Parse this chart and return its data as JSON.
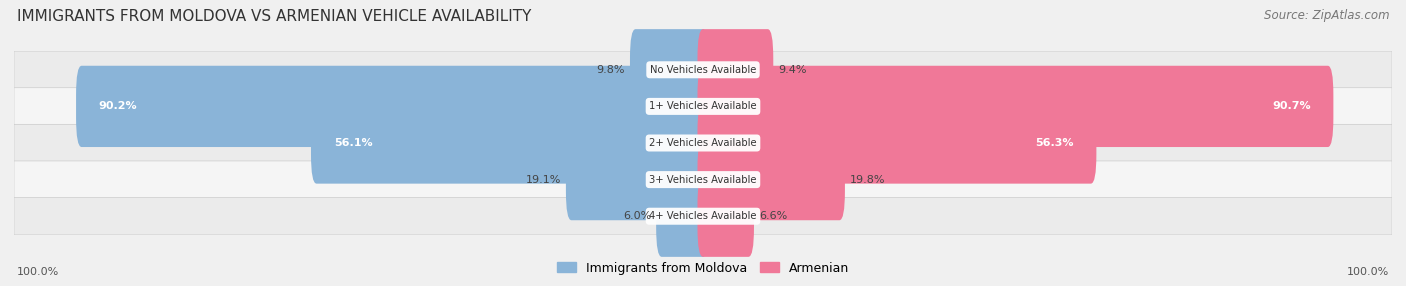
{
  "title": "IMMIGRANTS FROM MOLDOVA VS ARMENIAN VEHICLE AVAILABILITY",
  "source": "Source: ZipAtlas.com",
  "categories": [
    "No Vehicles Available",
    "1+ Vehicles Available",
    "2+ Vehicles Available",
    "3+ Vehicles Available",
    "4+ Vehicles Available"
  ],
  "moldova_values": [
    9.8,
    90.2,
    56.1,
    19.1,
    6.0
  ],
  "armenian_values": [
    9.4,
    90.7,
    56.3,
    19.8,
    6.6
  ],
  "moldova_color": "#8ab4d8",
  "armenian_color": "#f07898",
  "moldova_color_light": "#b8d0e8",
  "armenian_color_light": "#f5aabe",
  "bar_height": 0.62,
  "row_bg_even": "#ebebeb",
  "row_bg_odd": "#f5f5f5",
  "bg_color": "#f0f0f0",
  "max_val": 100.0,
  "legend_moldova": "Immigrants from Moldova",
  "legend_armenian": "Armenian"
}
